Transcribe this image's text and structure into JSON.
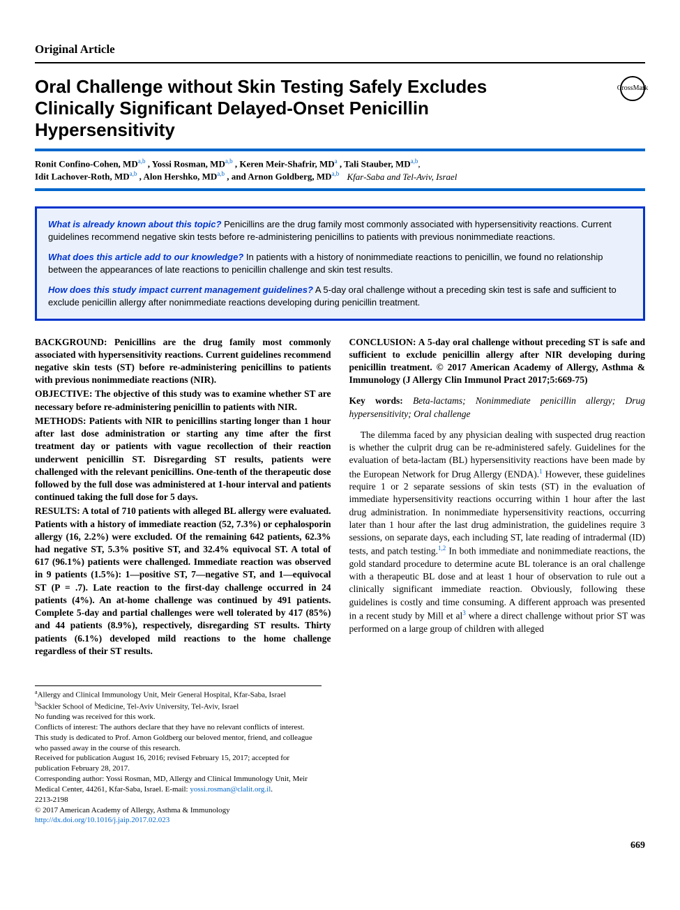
{
  "articleType": "Original Article",
  "title": "Oral Challenge without Skin Testing Safely Excludes Clinically Significant Delayed-Onset Penicillin Hypersensitivity",
  "crossmark": "CrossMark",
  "authors": {
    "line1": "Ronit Confino-Cohen, MD",
    "sup1": "a,b",
    "sep1": ", Yossi Rosman, MD",
    "sup2": "a,b",
    "sep2": ", Keren Meir-Shafrir, MD",
    "sup3": "a",
    "sep3": ", Tali Stauber, MD",
    "sup4": "a,b",
    "sep4": ",",
    "line2": "Idit Lachover-Roth, MD",
    "sup5": "a,b",
    "sep5": ", Alon Hershko, MD",
    "sup6": "a,b",
    "sep6": ", and Arnon Goldberg, MD",
    "sup7": "a,b",
    "affil": "Kfar-Saba and Tel-Aviv, Israel"
  },
  "highlights": {
    "q1": "What is already known about this topic?",
    "a1": " Penicillins are the drug family most commonly associated with hypersensitivity reactions. Current guidelines recommend negative skin tests before re-administering penicillins to patients with previous nonimmediate reactions.",
    "q2": "What does this article add to our knowledge?",
    "a2": " In patients with a history of nonimmediate reactions to penicillin, we found no relationship between the appearances of late reactions to penicillin challenge and skin test results.",
    "q3": "How does this study impact current management guidelines?",
    "a3": " A 5-day oral challenge without a preceding skin test is safe and sufficient to exclude penicillin allergy after nonimmediate reactions developing during penicillin treatment."
  },
  "abstract": {
    "backgroundLabel": "BACKGROUND: ",
    "background": "Penicillins are the drug family most commonly associated with hypersensitivity reactions. Current guidelines recommend negative skin tests (ST) before re-administering penicillins to patients with previous nonimmediate reactions (NIR).",
    "objectiveLabel": "OBJECTIVE: ",
    "objective": "The objective of this study was to examine whether ST are necessary before re-administering penicillin to patients with NIR.",
    "methodsLabel": "METHODS: ",
    "methods": "Patients with NIR to penicillins starting longer than 1 hour after last dose administration or starting any time after the first treatment day or patients with vague recollection of their reaction underwent penicillin ST. Disregarding ST results, patients were challenged with the relevant penicillins. One-tenth of the therapeutic dose followed by the full dose was administered at 1-hour interval and patients continued taking the full dose for 5 days.",
    "resultsLabel": "RESULTS: ",
    "results1": "A total of 710 patients with alleged BL allergy were evaluated. Patients with a history of immediate reaction (52, 7.3%) or cephalosporin allergy (16, 2.2%) were excluded. Of the remaining 642 patients, 62.3% had negative ST, 5.3% positive ST, and 32.4% equivocal ST. A total of 617 (96.1%) patients were challenged. Immediate reaction was observed in 9 patients ",
    "results2": "(1.5%): 1—positive ST, 7—negative ST, and 1—equivocal ST (P = .7). Late reaction to the first-day challenge occurred in 24 patients (4%). An at-home challenge was continued by 491 patients. Complete 5-day and partial challenges were well tolerated by 417 (85%) and 44 patients (8.9%), respectively, disregarding ST results. Thirty patients (6.1%) developed mild reactions to the home challenge regardless of their ST results.",
    "conclusionLabel": "CONCLUSION: ",
    "conclusion": "A 5-day oral challenge without preceding ST is safe and sufficient to exclude penicillin allergy after NIR developing during penicillin treatment.   © 2017 American Academy of Allergy, Asthma & Immunology (J Allergy Clin Immunol Pract 2017;5:669-75)"
  },
  "keywordsLabel": "Key words: ",
  "keywords": "Beta-lactams; Nonimmediate penicillin allergy; Drug hypersensitivity; Oral challenge",
  "body": {
    "p1a": "The dilemma faced by any physician dealing with suspected drug reaction is whether the culprit drug can be re-administered safely. Guidelines for the evaluation of beta-lactam (BL) hypersensitivity reactions have been made by the European Network for Drug Allergy (ENDA).",
    "ref1": "1",
    "p1b": " However, these guidelines require 1 or 2 separate sessions of skin tests (ST) in the evaluation of immediate hypersensitivity reactions occurring within 1 hour after the last drug administration. In nonimmediate hypersensitivity reactions, occurring later than 1 hour after the last drug administration, the guidelines require 3 sessions, on separate days, each including ST, late reading of intradermal (ID) tests, and patch testing.",
    "ref2": "1,2",
    "p1c": " In both immediate and nonimmediate reactions, the gold standard procedure to determine acute BL tolerance is an oral challenge with a therapeutic BL dose and at least 1 hour of observation to rule out a clinically significant immediate reaction. Obviously, following these guidelines is costly and time consuming. A different approach was presented in a recent study by Mill et al",
    "ref3": "3",
    "p1d": " where a direct challenge without prior ST was performed on a large group of children with alleged"
  },
  "footnotes": {
    "a": "Allergy and Clinical Immunology Unit, Meir General Hospital, Kfar-Saba, Israel",
    "b": "Sackler School of Medicine, Tel-Aviv University, Tel-Aviv, Israel",
    "funding": "No funding was received for this work.",
    "coi": "Conflicts of interest: The authors declare that they have no relevant conflicts of interest.",
    "dedication": "This study is dedicated to Prof. Arnon Goldberg our beloved mentor, friend, and colleague who passed away in the course of this research.",
    "received": "Received for publication August 16, 2016; revised February 15, 2017; accepted for publication February 28, 2017.",
    "corresponding": "Corresponding author: Yossi Rosman, MD, Allergy and Clinical Immunology Unit, Meir Medical Center, 44261, Kfar-Saba, Israel. E-mail: ",
    "email": "yossi.rosman@clalit.org.il",
    "dot": ".",
    "issn": "2213-2198",
    "copyright": "© 2017 American Academy of Allergy, Asthma & Immunology",
    "doi": "http://dx.doi.org/10.1016/j.jaip.2017.02.023"
  },
  "pageNumber": "669"
}
